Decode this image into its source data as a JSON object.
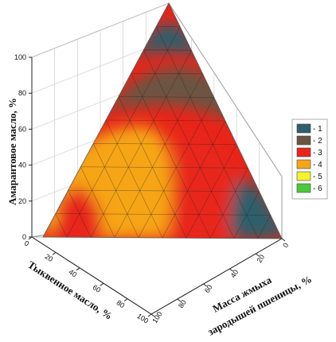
{
  "chart_data": {
    "type": "heatmap",
    "subtype": "ternary-contour-3d",
    "axes": {
      "left": {
        "label": "Амарантовое масло, %",
        "ticks": [
          "0",
          "20",
          "40",
          "60",
          "80",
          "100"
        ]
      },
      "front_left": {
        "label": "Тыквенное масло, %",
        "ticks": [
          "0",
          "20",
          "40",
          "60",
          "80",
          "100"
        ]
      },
      "front_right": {
        "label_line1": "Масса жмыха",
        "label_line2": "зародышей пшеницы, %",
        "ticks": [
          "0",
          "20",
          "40",
          "60",
          "80",
          "100"
        ]
      }
    },
    "legend": {
      "placement": "right",
      "entries": [
        {
          "label": "- 1",
          "color": "#2f5f6a"
        },
        {
          "label": "- 2",
          "color": "#6b5442"
        },
        {
          "label": "- 3",
          "color": "#e8251a"
        },
        {
          "label": "- 4",
          "color": "#f6a519"
        },
        {
          "label": "- 5",
          "color": "#f4f22b"
        },
        {
          "label": "- 6",
          "color": "#4cc93a"
        }
      ]
    },
    "grid": true
  }
}
